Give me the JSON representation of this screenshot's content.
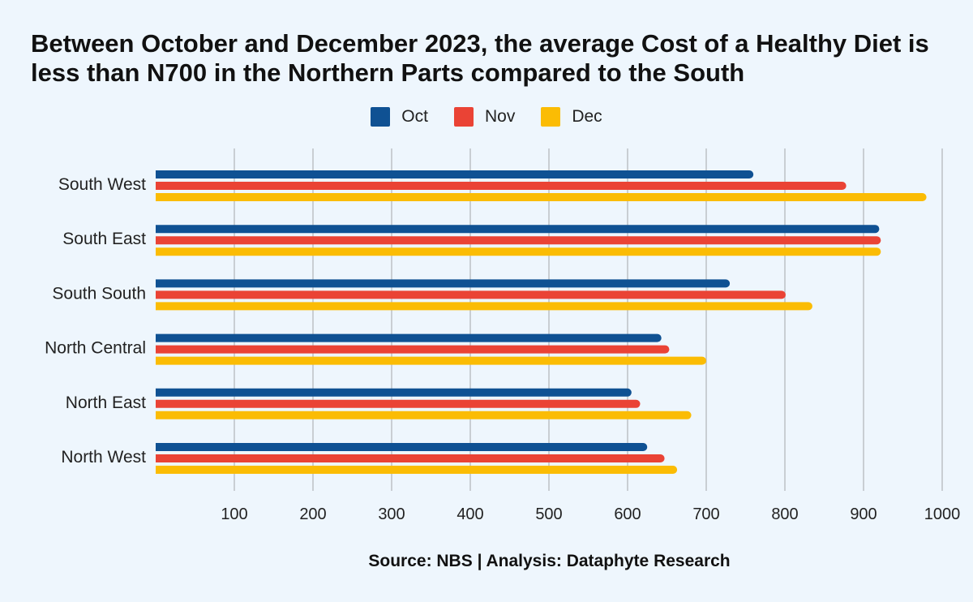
{
  "title": "Between October and December 2023, the average Cost of a Healthy Diet is less than N700 in the Northern Parts compared to the South",
  "source": "Source: NBS | Analysis: Dataphyte Research",
  "chart_data": {
    "type": "bar",
    "orientation": "horizontal",
    "categories": [
      "South West",
      "South East",
      "South South",
      "North Central",
      "North East",
      "North West"
    ],
    "series": [
      {
        "name": "Oct",
        "color": "#0f5193",
        "values": [
          760,
          920,
          730,
          643,
          605,
          625
        ]
      },
      {
        "name": "Nov",
        "color": "#ea4335",
        "values": [
          878,
          922,
          801,
          653,
          616,
          647
        ]
      },
      {
        "name": "Dec",
        "color": "#fbbc04",
        "values": [
          980,
          922,
          835,
          700,
          681,
          663
        ]
      }
    ],
    "xlim": [
      0,
      1000
    ],
    "xticks": [
      "100",
      "200",
      "300",
      "400",
      "500",
      "600",
      "700",
      "800",
      "900",
      "1000"
    ],
    "grid": true,
    "legend_position": "top-center"
  }
}
